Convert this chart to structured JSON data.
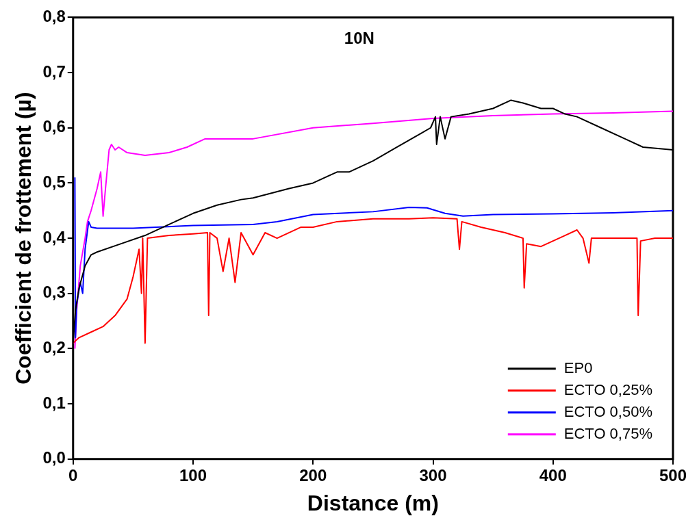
{
  "chart_data": {
    "type": "line",
    "title": "10N",
    "xlabel": "Distance (m)",
    "ylabel": "Coefficient de frottement (µ)",
    "xlim": [
      0,
      500
    ],
    "xticks": [
      0,
      100,
      200,
      300,
      400,
      500
    ],
    "ylim": [
      0,
      0.8
    ],
    "yticks": [
      {
        "value": 0,
        "label": "0,0"
      },
      {
        "value": 0.1,
        "label": "0,1"
      },
      {
        "value": 0.2,
        "label": "0,2"
      },
      {
        "value": 0.3,
        "label": "0,3"
      },
      {
        "value": 0.4,
        "label": "0,4"
      },
      {
        "value": 0.5,
        "label": "0,5"
      },
      {
        "value": 0.6,
        "label": "0,6"
      },
      {
        "value": 0.7,
        "label": "0,7"
      },
      {
        "value": 0.8,
        "label": "0,8"
      }
    ],
    "grid": false,
    "legend": "bottom right",
    "marker": "none",
    "line_style": "solid",
    "series": [
      {
        "name": "EP0",
        "color": "#000000",
        "x": [
          0,
          2,
          5,
          10,
          15,
          20,
          40,
          60,
          80,
          100,
          120,
          140,
          150,
          180,
          200,
          220,
          230,
          250,
          270,
          290,
          298,
          302,
          303,
          306,
          310,
          315,
          330,
          350,
          365,
          375,
          390,
          400,
          410,
          420,
          440,
          460,
          475,
          500
        ],
        "values": [
          0.21,
          0.27,
          0.31,
          0.35,
          0.37,
          0.375,
          0.39,
          0.405,
          0.425,
          0.445,
          0.46,
          0.47,
          0.473,
          0.49,
          0.5,
          0.52,
          0.52,
          0.54,
          0.565,
          0.59,
          0.6,
          0.62,
          0.57,
          0.62,
          0.58,
          0.62,
          0.625,
          0.635,
          0.65,
          0.645,
          0.635,
          0.635,
          0.625,
          0.62,
          0.6,
          0.58,
          0.565,
          0.56
        ]
      },
      {
        "name": "ECTO 0,25%",
        "color": "#ff0000",
        "x": [
          0,
          5,
          15,
          25,
          35,
          45,
          50,
          55,
          57,
          58,
          60,
          62,
          80,
          100,
          112,
          113,
          114,
          120,
          125,
          130,
          135,
          140,
          150,
          160,
          170,
          190,
          200,
          220,
          250,
          280,
          300,
          320,
          322,
          324,
          340,
          360,
          375,
          376,
          378,
          390,
          410,
          420,
          425,
          430,
          432,
          460,
          470,
          471,
          473,
          485,
          500
        ],
        "values": [
          0.21,
          0.22,
          0.23,
          0.24,
          0.26,
          0.29,
          0.33,
          0.38,
          0.3,
          0.4,
          0.21,
          0.4,
          0.405,
          0.408,
          0.41,
          0.26,
          0.41,
          0.4,
          0.34,
          0.4,
          0.32,
          0.41,
          0.37,
          0.41,
          0.4,
          0.42,
          0.42,
          0.43,
          0.435,
          0.435,
          0.437,
          0.435,
          0.38,
          0.43,
          0.42,
          0.41,
          0.4,
          0.31,
          0.39,
          0.385,
          0.405,
          0.415,
          0.4,
          0.355,
          0.4,
          0.4,
          0.4,
          0.26,
          0.395,
          0.4,
          0.4
        ]
      },
      {
        "name": "ECTO 0,50%",
        "color": "#0000ff",
        "x": [
          1.5,
          2,
          3,
          6,
          8,
          10,
          13,
          15,
          20,
          50,
          100,
          150,
          170,
          200,
          250,
          280,
          295,
          310,
          325,
          350,
          400,
          450,
          500
        ],
        "values": [
          0.51,
          0.22,
          0.28,
          0.32,
          0.3,
          0.38,
          0.43,
          0.42,
          0.418,
          0.418,
          0.423,
          0.425,
          0.43,
          0.443,
          0.448,
          0.456,
          0.455,
          0.445,
          0.44,
          0.443,
          0.444,
          0.446,
          0.45
        ]
      },
      {
        "name": "ECTO 0,75%",
        "color": "#ff00ff",
        "x": [
          1.5,
          3,
          6,
          10,
          12,
          15,
          20,
          23,
          25,
          27,
          30,
          32,
          35,
          38,
          45,
          60,
          80,
          95,
          110,
          150,
          200,
          250,
          300,
          350,
          400,
          450,
          500
        ],
        "values": [
          0.2,
          0.27,
          0.35,
          0.4,
          0.43,
          0.45,
          0.49,
          0.52,
          0.44,
          0.49,
          0.56,
          0.57,
          0.56,
          0.565,
          0.555,
          0.55,
          0.555,
          0.565,
          0.58,
          0.58,
          0.6,
          0.608,
          0.617,
          0.622,
          0.625,
          0.627,
          0.63
        ]
      }
    ]
  }
}
